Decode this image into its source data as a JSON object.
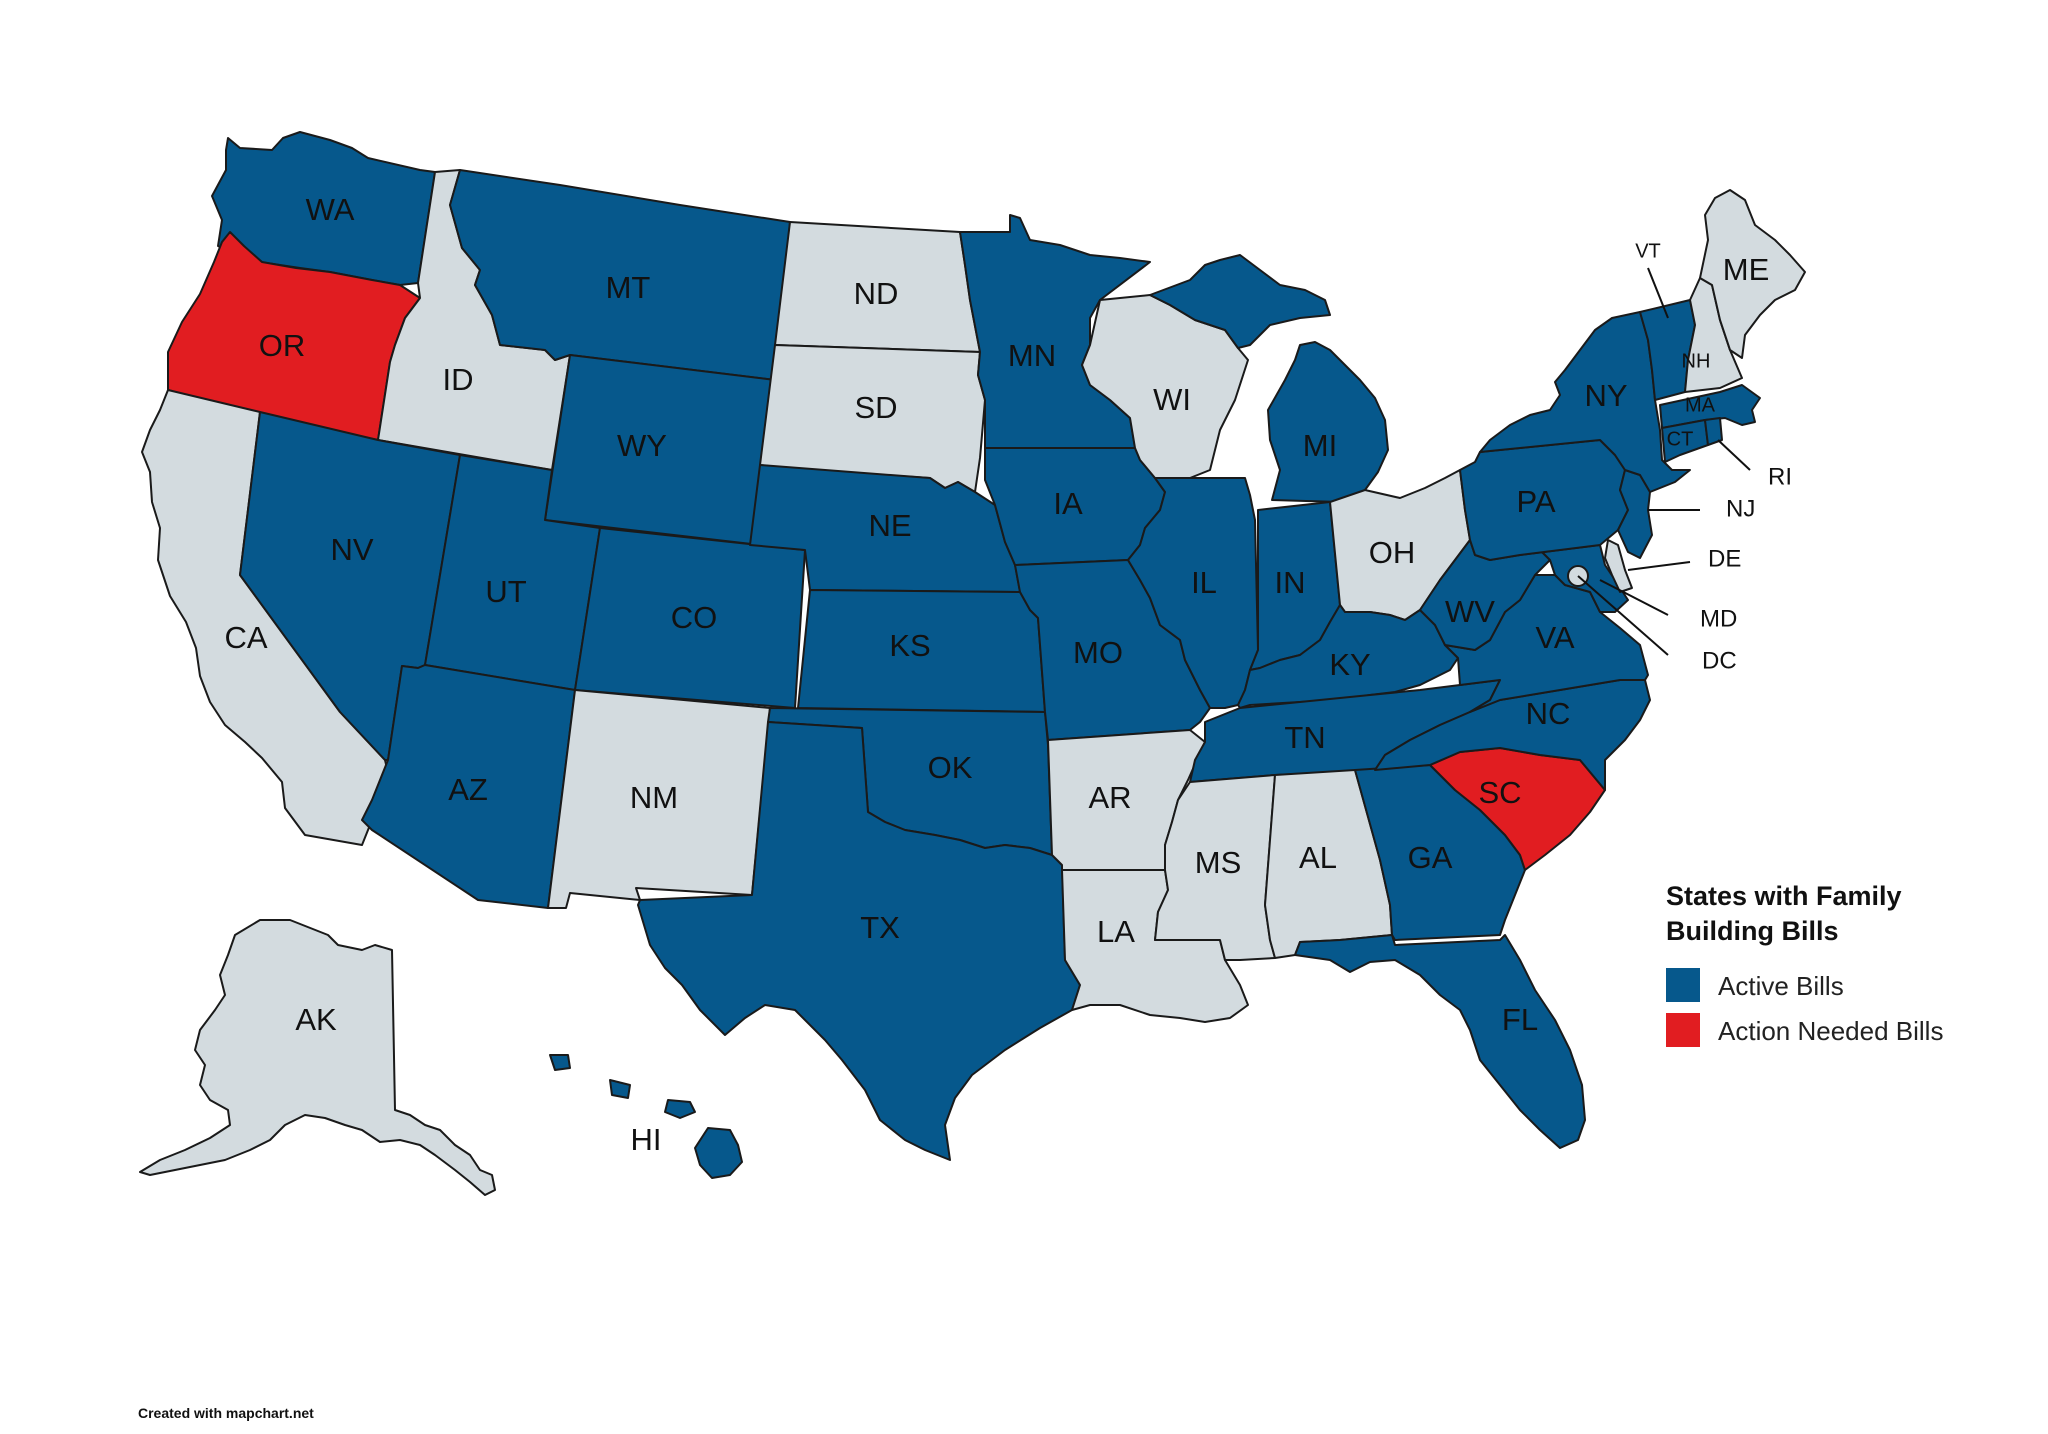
{
  "legend": {
    "title_line1": "States with Family",
    "title_line2": "Building Bills",
    "items": [
      {
        "label": "Active Bills",
        "color": "#06588c"
      },
      {
        "label": "Action Needed Bills",
        "color": "#e11d21"
      }
    ]
  },
  "colors": {
    "active": "#06588c",
    "action": "#e11d21",
    "none": "#d3dbdf"
  },
  "credit": "Created with mapchart.net",
  "states": {
    "WA": {
      "label": "WA",
      "status": "active"
    },
    "OR": {
      "label": "OR",
      "status": "action"
    },
    "CA": {
      "label": "CA",
      "status": "none"
    },
    "ID": {
      "label": "ID",
      "status": "none"
    },
    "NV": {
      "label": "NV",
      "status": "active"
    },
    "MT": {
      "label": "MT",
      "status": "active"
    },
    "WY": {
      "label": "WY",
      "status": "active"
    },
    "UT": {
      "label": "UT",
      "status": "active"
    },
    "AZ": {
      "label": "AZ",
      "status": "active"
    },
    "CO": {
      "label": "CO",
      "status": "active"
    },
    "NM": {
      "label": "NM",
      "status": "none"
    },
    "ND": {
      "label": "ND",
      "status": "none"
    },
    "SD": {
      "label": "SD",
      "status": "none"
    },
    "NE": {
      "label": "NE",
      "status": "active"
    },
    "KS": {
      "label": "KS",
      "status": "active"
    },
    "OK": {
      "label": "OK",
      "status": "active"
    },
    "TX": {
      "label": "TX",
      "status": "active"
    },
    "MN": {
      "label": "MN",
      "status": "active"
    },
    "IA": {
      "label": "IA",
      "status": "active"
    },
    "MO": {
      "label": "MO",
      "status": "active"
    },
    "AR": {
      "label": "AR",
      "status": "none"
    },
    "LA": {
      "label": "LA",
      "status": "none"
    },
    "WI": {
      "label": "WI",
      "status": "none"
    },
    "IL": {
      "label": "IL",
      "status": "active"
    },
    "MI": {
      "label": "MI",
      "status": "active"
    },
    "IN": {
      "label": "IN",
      "status": "active"
    },
    "OH": {
      "label": "OH",
      "status": "none"
    },
    "KY": {
      "label": "KY",
      "status": "active"
    },
    "TN": {
      "label": "TN",
      "status": "active"
    },
    "MS": {
      "label": "MS",
      "status": "none"
    },
    "AL": {
      "label": "AL",
      "status": "none"
    },
    "GA": {
      "label": "GA",
      "status": "active"
    },
    "FL": {
      "label": "FL",
      "status": "active"
    },
    "SC": {
      "label": "SC",
      "status": "action"
    },
    "NC": {
      "label": "NC",
      "status": "active"
    },
    "VA": {
      "label": "VA",
      "status": "active"
    },
    "WV": {
      "label": "WV",
      "status": "active"
    },
    "PA": {
      "label": "PA",
      "status": "active"
    },
    "NY": {
      "label": "NY",
      "status": "active"
    },
    "VT": {
      "label": "VT",
      "status": "active"
    },
    "NH": {
      "label": "NH",
      "status": "none"
    },
    "ME": {
      "label": "ME",
      "status": "none"
    },
    "MA": {
      "label": "MA",
      "status": "active"
    },
    "RI": {
      "label": "RI",
      "status": "active"
    },
    "CT": {
      "label": "CT",
      "status": "active"
    },
    "NJ": {
      "label": "NJ",
      "status": "active"
    },
    "DE": {
      "label": "DE",
      "status": "none"
    },
    "MD": {
      "label": "MD",
      "status": "active"
    },
    "DC": {
      "label": "DC",
      "status": "none"
    },
    "AK": {
      "label": "AK",
      "status": "none"
    },
    "HI": {
      "label": "HI",
      "status": "active"
    }
  }
}
